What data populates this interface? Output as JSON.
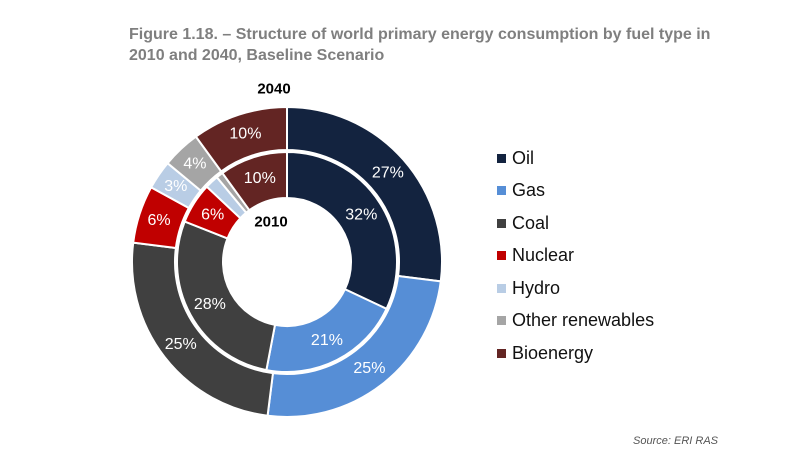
{
  "title": "Figure 1.18. – Structure of world primary energy consumption by fuel type in 2010 and 2040, Baseline Scenario",
  "source": "Source: ERI RAS",
  "chart_data": {
    "type": "donut",
    "categories": [
      "Oil",
      "Gas",
      "Coal",
      "Nuclear",
      "Hydro",
      "Other renewables",
      "Bioenergy"
    ],
    "colors": [
      "#13233f",
      "#568ed6",
      "#404040",
      "#c00000",
      "#b9cde5",
      "#a5a5a5",
      "#632523"
    ],
    "series": [
      {
        "name": "2040",
        "ring": "outer",
        "values": [
          27,
          25,
          25,
          6,
          3,
          4,
          10
        ],
        "labels": [
          "27%",
          "25%",
          "25%",
          "6%",
          "3%",
          "4%",
          "10%"
        ]
      },
      {
        "name": "2010",
        "ring": "inner",
        "values": [
          32,
          21,
          28,
          6,
          2,
          1,
          10
        ],
        "labels": [
          "32%",
          "21%",
          "28%",
          "6%",
          "",
          "",
          "10%"
        ]
      }
    ],
    "legend_position": "right"
  }
}
